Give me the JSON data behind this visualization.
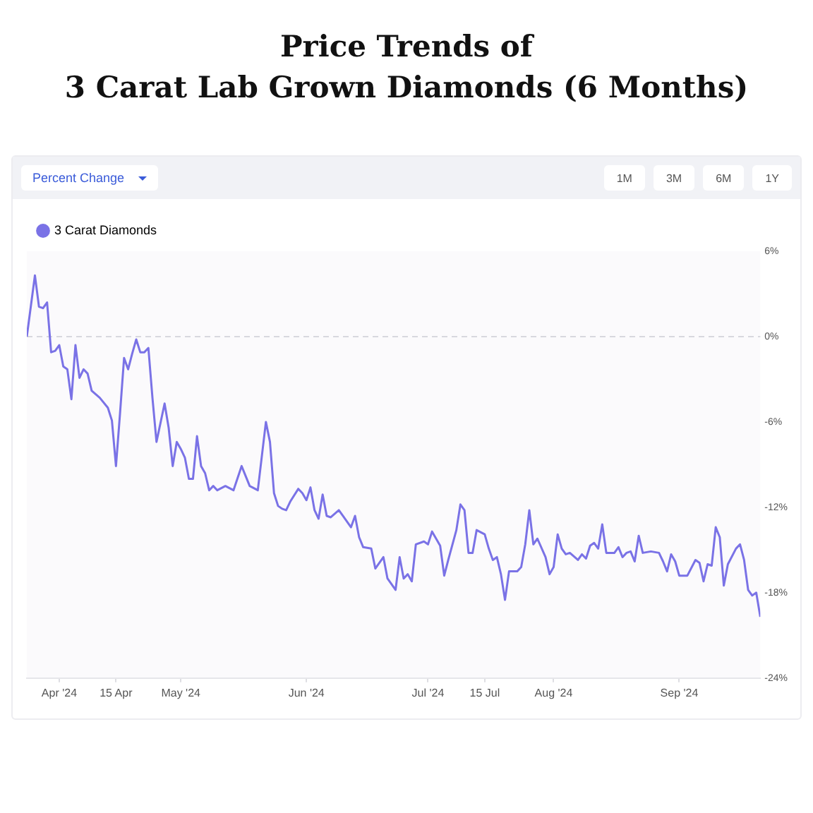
{
  "chart_data": {
    "type": "line",
    "title": "Price Trends of\n3 Carat Lab Grown Diamonds (6 Months)",
    "annotations": [
      "Percent Change",
      "1M",
      "3M",
      "6M",
      "1Y"
    ],
    "x": [
      "2024-03-24",
      "2024-03-26",
      "2024-03-27",
      "2024-03-28",
      "2024-03-29",
      "2024-03-30",
      "2024-03-31",
      "2024-04-01",
      "2024-04-02",
      "2024-04-03",
      "2024-04-04",
      "2024-04-05",
      "2024-04-06",
      "2024-04-07",
      "2024-04-08",
      "2024-04-09",
      "2024-04-11",
      "2024-04-13",
      "2024-04-14",
      "2024-04-15",
      "2024-04-16",
      "2024-04-17",
      "2024-04-18",
      "2024-04-19",
      "2024-04-20",
      "2024-04-21",
      "2024-04-22",
      "2024-04-23",
      "2024-04-24",
      "2024-04-25",
      "2024-04-27",
      "2024-04-28",
      "2024-04-29",
      "2024-04-30",
      "2024-05-01",
      "2024-05-02",
      "2024-05-03",
      "2024-05-04",
      "2024-05-05",
      "2024-05-06",
      "2024-05-07",
      "2024-05-08",
      "2024-05-09",
      "2024-05-10",
      "2024-05-12",
      "2024-05-14",
      "2024-05-16",
      "2024-05-18",
      "2024-05-20",
      "2024-05-22",
      "2024-05-23",
      "2024-05-24",
      "2024-05-25",
      "2024-05-26",
      "2024-05-27",
      "2024-05-28",
      "2024-05-30",
      "2024-05-31",
      "2024-06-01",
      "2024-06-02",
      "2024-06-03",
      "2024-06-04",
      "2024-06-05",
      "2024-06-06",
      "2024-06-07",
      "2024-06-09",
      "2024-06-10",
      "2024-06-12",
      "2024-06-13",
      "2024-06-14",
      "2024-06-15",
      "2024-06-17",
      "2024-06-18",
      "2024-06-20",
      "2024-06-21",
      "2024-06-23",
      "2024-06-24",
      "2024-06-25",
      "2024-06-26",
      "2024-06-27",
      "2024-06-28",
      "2024-06-30",
      "2024-07-01",
      "2024-07-02",
      "2024-07-04",
      "2024-07-05",
      "2024-07-06",
      "2024-07-08",
      "2024-07-09",
      "2024-07-10",
      "2024-07-11",
      "2024-07-12",
      "2024-07-13",
      "2024-07-15",
      "2024-07-16",
      "2024-07-17",
      "2024-07-18",
      "2024-07-19",
      "2024-07-20",
      "2024-07-21",
      "2024-07-23",
      "2024-07-24",
      "2024-07-25",
      "2024-07-26",
      "2024-07-27",
      "2024-07-28",
      "2024-07-30",
      "2024-07-31",
      "2024-08-01",
      "2024-08-02",
      "2024-08-03",
      "2024-08-04",
      "2024-08-05",
      "2024-08-07",
      "2024-08-08",
      "2024-08-09",
      "2024-08-10",
      "2024-08-11",
      "2024-08-12",
      "2024-08-13",
      "2024-08-14",
      "2024-08-16",
      "2024-08-17",
      "2024-08-18",
      "2024-08-19",
      "2024-08-20",
      "2024-08-21",
      "2024-08-22",
      "2024-08-23",
      "2024-08-25",
      "2024-08-27",
      "2024-08-28",
      "2024-08-29",
      "2024-08-30",
      "2024-08-31",
      "2024-09-01",
      "2024-09-03",
      "2024-09-05",
      "2024-09-06",
      "2024-09-07",
      "2024-09-08",
      "2024-09-09",
      "2024-09-10",
      "2024-09-11",
      "2024-09-12",
      "2024-09-13",
      "2024-09-15",
      "2024-09-16",
      "2024-09-17",
      "2024-09-18",
      "2024-09-19",
      "2024-09-20",
      "2024-09-21"
    ],
    "series": [
      {
        "name": "3 Carat Diamonds",
        "color": "#7a72e6",
        "values": [
          0,
          4.3,
          2.1,
          2.0,
          2.4,
          -1.1,
          -1.0,
          -0.6,
          -2.1,
          -2.3,
          -4.4,
          -0.6,
          -2.9,
          -2.3,
          -2.6,
          -3.8,
          -4.3,
          -5.0,
          -5.9,
          -9.1,
          -5.4,
          -1.5,
          -2.3,
          -1.2,
          -0.2,
          -1.1,
          -1.1,
          -0.8,
          -4.3,
          -7.4,
          -4.7,
          -6.4,
          -9.1,
          -7.4,
          -7.9,
          -8.5,
          -10.0,
          -10.0,
          -7.0,
          -9.1,
          -9.6,
          -10.8,
          -10.5,
          -10.8,
          -10.5,
          -10.8,
          -9.1,
          -10.5,
          -10.8,
          -6.0,
          -7.4,
          -11.0,
          -11.9,
          -12.1,
          -12.2,
          -11.6,
          -10.7,
          -11.0,
          -11.5,
          -10.6,
          -12.2,
          -12.8,
          -11.1,
          -12.6,
          -12.7,
          -12.2,
          -12.6,
          -13.4,
          -12.6,
          -14.1,
          -14.8,
          -14.9,
          -16.3,
          -15.5,
          -17.0,
          -17.8,
          -15.5,
          -17.0,
          -16.7,
          -17.2,
          -14.6,
          -14.4,
          -14.6,
          -13.7,
          -14.7,
          -16.8,
          -15.7,
          -13.6,
          -11.8,
          -12.2,
          -15.2,
          -15.2,
          -13.6,
          -13.9,
          -14.9,
          -15.7,
          -15.5,
          -16.7,
          -18.5,
          -16.5,
          -16.5,
          -16.2,
          -14.6,
          -12.2,
          -14.6,
          -14.2,
          -15.5,
          -16.7,
          -16.2,
          -13.9,
          -14.9,
          -15.3,
          -15.2,
          -15.7,
          -15.3,
          -15.6,
          -14.7,
          -14.5,
          -14.9,
          -13.2,
          -15.2,
          -15.2,
          -14.8,
          -15.5,
          -15.2,
          -15.1,
          -15.8,
          -14.0,
          -15.2,
          -15.1,
          -15.2,
          -15.8,
          -16.5,
          -15.3,
          -15.8,
          -16.8,
          -16.8,
          -15.7,
          -15.9,
          -17.2,
          -16.0,
          -16.1,
          -13.4,
          -14.1,
          -17.5,
          -16.0,
          -14.9,
          -14.6,
          -15.7,
          -17.8,
          -18.2,
          -18.0,
          -19.7
        ]
      }
    ],
    "xlim": [
      "2024-03-24",
      "2024-09-21"
    ],
    "xticks": [
      {
        "value": "2024-04-01",
        "label": "Apr '24"
      },
      {
        "value": "2024-04-15",
        "label": "15 Apr"
      },
      {
        "value": "2024-05-01",
        "label": "May '24"
      },
      {
        "value": "2024-06-01",
        "label": "Jun '24"
      },
      {
        "value": "2024-07-01",
        "label": "Jul '24"
      },
      {
        "value": "2024-07-15",
        "label": "15 Jul"
      },
      {
        "value": "2024-08-01",
        "label": "Aug '24"
      },
      {
        "value": "2024-09-01",
        "label": "Sep '24"
      }
    ],
    "ylim": [
      -24,
      6
    ],
    "yticks": [
      {
        "value": 6,
        "label": "6%"
      },
      {
        "value": 0,
        "label": "0%"
      },
      {
        "value": -6,
        "label": "-6%"
      },
      {
        "value": -12,
        "label": "-12%"
      },
      {
        "value": -18,
        "label": "-18%"
      },
      {
        "value": -24,
        "label": "-24%"
      }
    ],
    "ref_lines": [
      {
        "axis": "y",
        "value": 0,
        "color": "#d8d8de",
        "line_style": "dashed"
      }
    ],
    "grid": false,
    "legend": "top left",
    "marker": "none",
    "line_style": "solid"
  }
}
